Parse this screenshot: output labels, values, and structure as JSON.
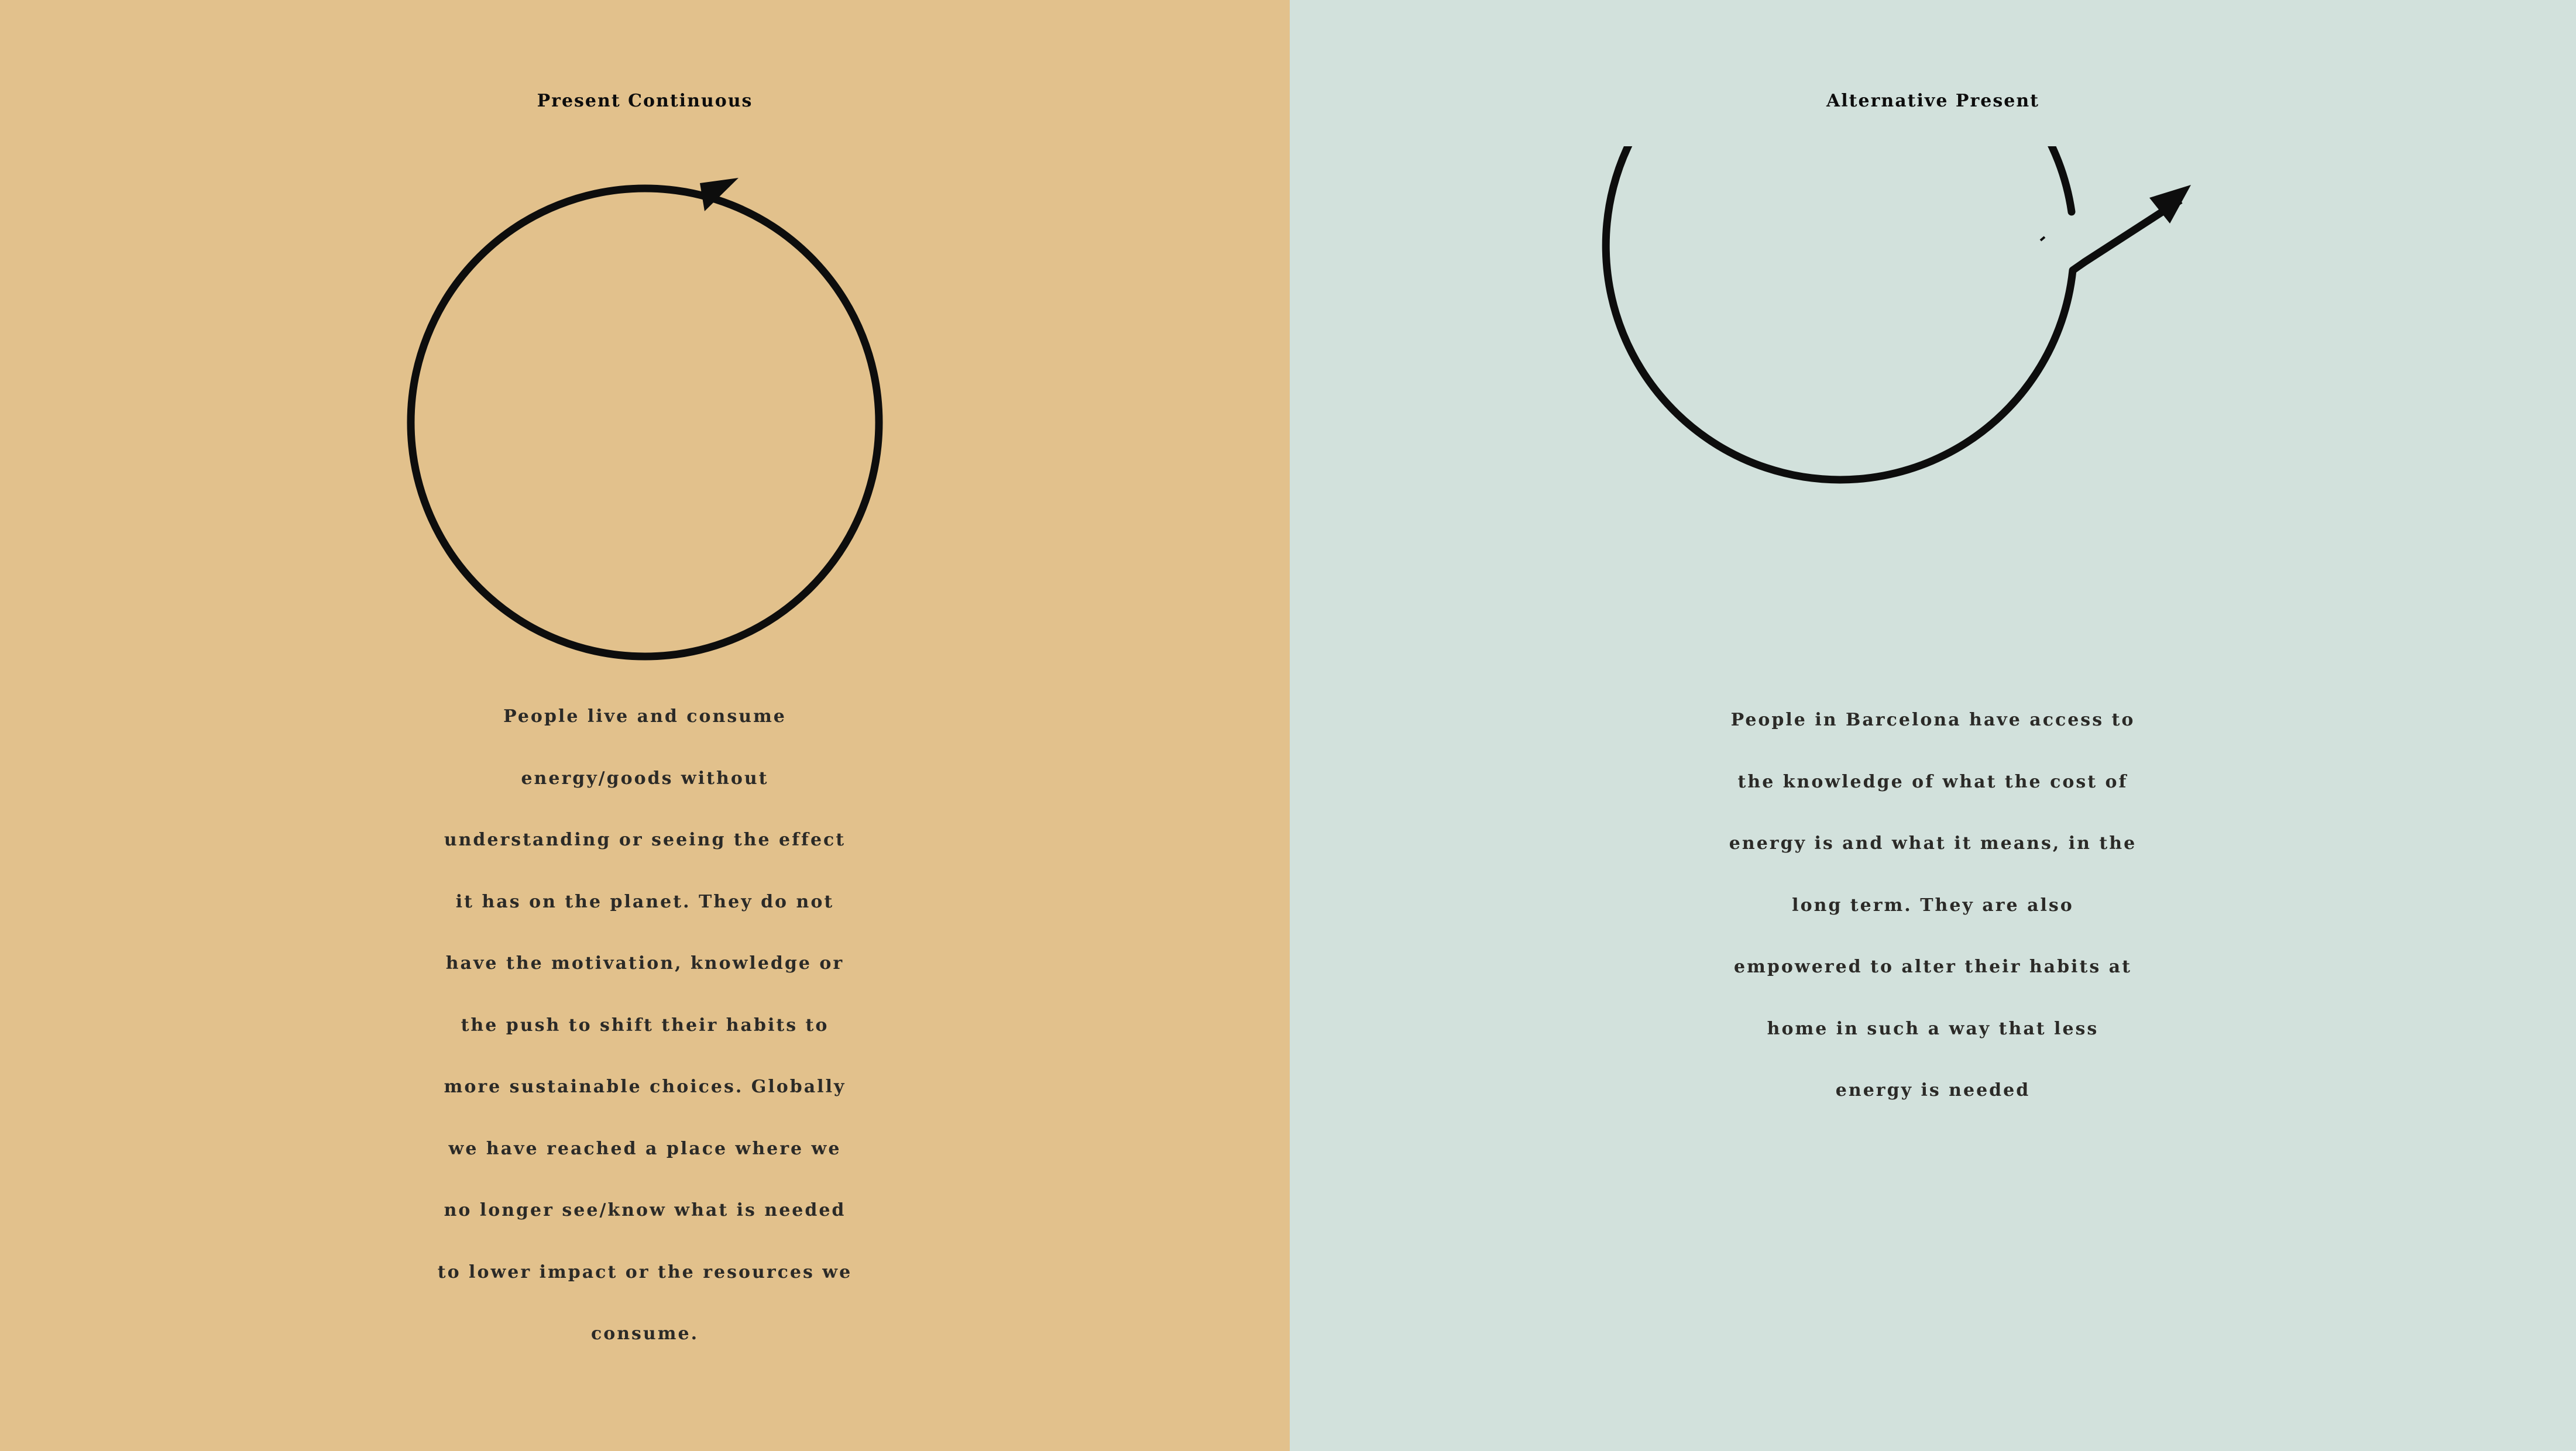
{
  "colors": {
    "left_background": "#e2c18c",
    "right_background": "#d2e1dc",
    "stroke": "#0d0d0d",
    "text": "#2b2a27"
  },
  "panels": [
    {
      "title": "Present Continuous",
      "diagram": "closed-cycle-arrow-icon",
      "lines": [
        "People live and consume",
        "energy/goods without",
        "understanding or seeing the effect",
        "it has on the planet. They do not",
        "have the motivation, knowledge or",
        "the push to shift their habits to",
        "more sustainable choices. Globally",
        "we have reached a place where we",
        "no longer see/know what is needed",
        "to lower impact or the resources we",
        "consume."
      ]
    },
    {
      "title": "Alternative Present",
      "diagram": "open-cycle-breakout-arrow-icon",
      "lines": [
        "People in Barcelona have access to",
        "the knowledge of what the cost of",
        "energy is and what it means, in the",
        "long term. They are also",
        "empowered to alter their habits at",
        "home in such a way that less",
        "energy is needed"
      ]
    }
  ]
}
